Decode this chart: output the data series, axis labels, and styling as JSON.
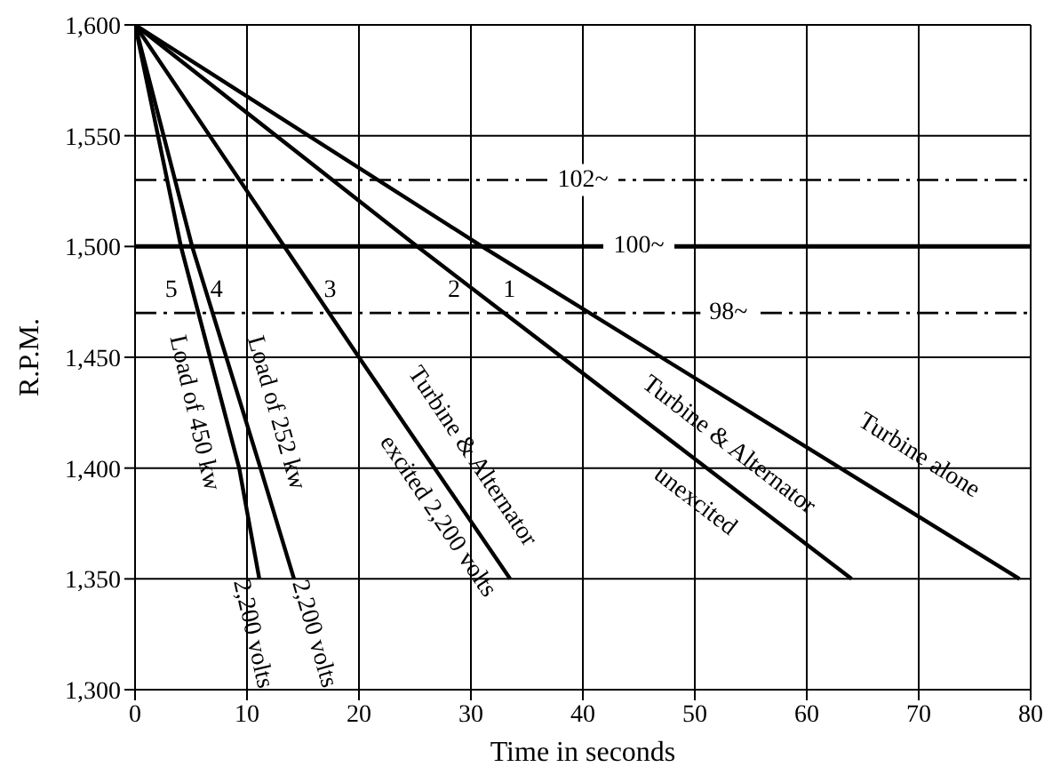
{
  "chart_data": {
    "type": "line",
    "xlabel": "Time in seconds",
    "ylabel": "R.P.M.",
    "xlim": [
      0,
      80
    ],
    "xticks": [
      0,
      10,
      20,
      30,
      40,
      50,
      60,
      70,
      80
    ],
    "ylim": [
      1300,
      1600
    ],
    "yticks": [
      {
        "value": 1300,
        "label": "1,300"
      },
      {
        "value": 1350,
        "label": "1,350"
      },
      {
        "value": 1400,
        "label": "1,400"
      },
      {
        "value": 1450,
        "label": "1,450"
      },
      {
        "value": 1500,
        "label": "1,500"
      },
      {
        "value": 1550,
        "label": "1,550"
      },
      {
        "value": 1600,
        "label": "1,600"
      }
    ],
    "grid": true,
    "marker": "none",
    "line_style": "solid",
    "series": [
      {
        "color": "#000000",
        "x": [
          0,
          31,
          79
        ],
        "values": [
          1600,
          1500,
          1350
        ]
      },
      {
        "color": "#000000",
        "x": [
          0,
          25.2,
          64
        ],
        "values": [
          1600,
          1500,
          1350
        ]
      },
      {
        "color": "#000000",
        "x": [
          0,
          20,
          33.5
        ],
        "values": [
          1600,
          1450,
          1350
        ]
      },
      {
        "color": "#000000",
        "x": [
          0,
          5.1,
          11.2,
          14.2
        ],
        "values": [
          1600,
          1500,
          1400,
          1350
        ]
      },
      {
        "color": "#000000",
        "x": [
          0,
          4.1,
          9.3,
          11.1
        ],
        "values": [
          1600,
          1500,
          1400,
          1350
        ]
      }
    ],
    "ref_lines": [
      {
        "axis": "y",
        "value": 1530,
        "line_style": "dashed",
        "color": "#000000"
      },
      {
        "axis": "y",
        "value": 1500,
        "line_style": "solid",
        "color": "#000000"
      },
      {
        "axis": "y",
        "value": 1470,
        "line_style": "dashed",
        "color": "#000000"
      }
    ],
    "annotations": [
      {
        "text": "1",
        "x": 37.4,
        "y": 1480
      },
      {
        "text": "2",
        "x": 30.4,
        "y": 1480
      },
      {
        "text": "3",
        "x": 16,
        "y": 1480
      },
      {
        "text": "4",
        "x": 6.32,
        "y": 1480
      },
      {
        "text": "5",
        "x": 5.14,
        "y": 1480
      },
      {
        "text": "Turbine alone",
        "x": 70,
        "y": 1378.1
      },
      {
        "text": "Turbine & Alternator",
        "x": 53,
        "y": 1392.5
      },
      {
        "text": "unexcited",
        "x": 50,
        "y": 1404.1
      },
      {
        "text": "Turbine & Alternator",
        "x": 28,
        "y": 1390.7
      },
      {
        "text": "excited 2,200 volts",
        "x": 27,
        "y": 1398.1
      },
      {
        "text": "Load of 252 kw",
        "x": 10,
        "y": 1420
      },
      {
        "text": "2,200 volts",
        "x": 14.2,
        "y": 1350
      },
      {
        "text": "Load of 450 kw",
        "x": 8.26,
        "y": 1420
      },
      {
        "text": "2,200 volts",
        "x": 11.1,
        "y": 1350
      },
      {
        "text": "102~",
        "x": 40,
        "y": 1530
      },
      {
        "text": "100~",
        "x": 45,
        "y": 1500
      },
      {
        "text": "98~",
        "x": 53,
        "y": 1470
      }
    ]
  }
}
